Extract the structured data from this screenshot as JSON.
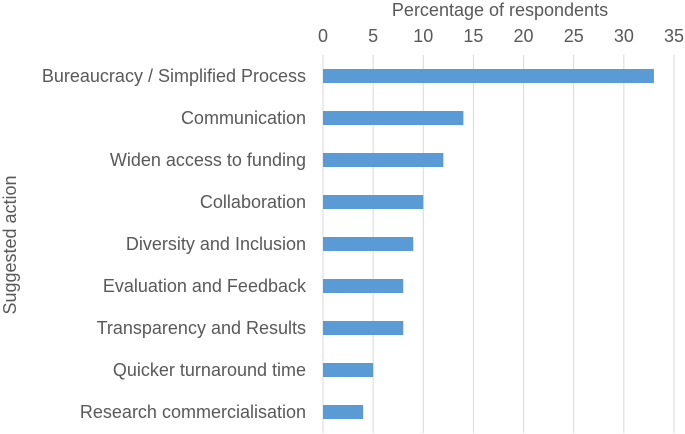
{
  "chart_data": {
    "type": "bar",
    "orientation": "horizontal",
    "title": "",
    "xlabel": "Percentage of respondents",
    "ylabel": "Suggested action",
    "xlim": [
      0,
      35
    ],
    "x_ticks": [
      "0",
      "5",
      "10",
      "15",
      "20",
      "25",
      "30",
      "35"
    ],
    "x_axis_position": "top",
    "grid": true,
    "legend": "none",
    "categories": [
      "Bureaucracy / Simplified Process",
      "Communication",
      "Widen access to funding",
      "Collaboration",
      "Diversity and Inclusion",
      "Evaluation and Feedback",
      "Transparency and Results",
      "Quicker turnaround time",
      "Research commercialisation"
    ],
    "values": [
      33,
      14,
      12,
      10,
      9,
      8,
      8,
      5,
      4
    ],
    "bar_color": "#5b9bd5"
  }
}
